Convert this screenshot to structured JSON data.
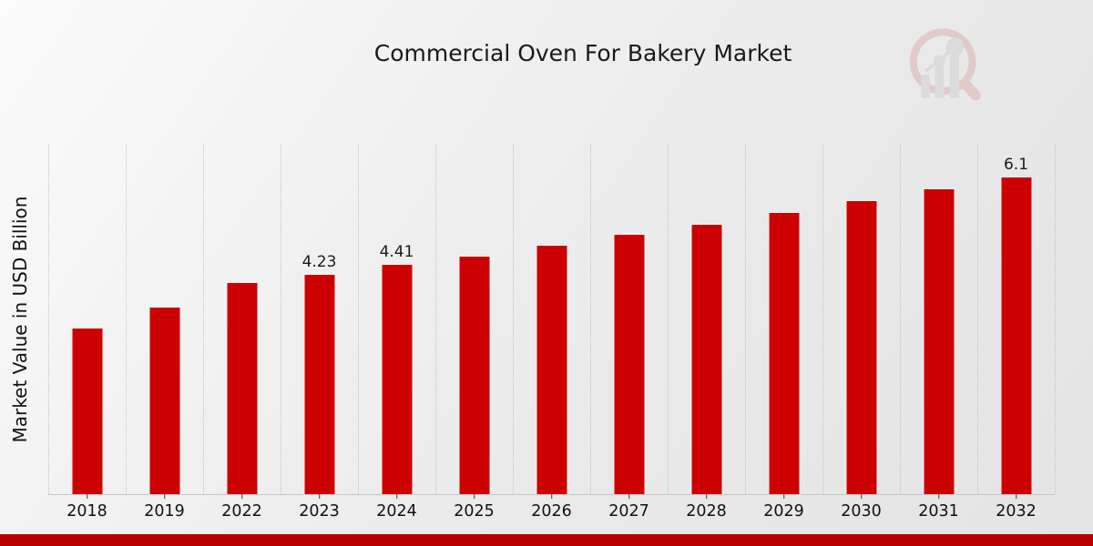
{
  "title": "Commercial Oven For Bakery Market",
  "ylabel": "Market Value in USD Billion",
  "colors": {
    "bar": "#cc0000",
    "bar_edge": "#f4f4f4",
    "bottom_band": "#b80000",
    "axis": "#c6c6c6",
    "grid": "#c3c3c3",
    "text": "#1a1a1a",
    "watermark_ring": "#dca6a6",
    "watermark_bars": "#cccccc"
  },
  "watermark": "mrfr-magnifier-bar-chart-logo",
  "chart_data": {
    "type": "bar",
    "title": "Commercial Oven For Bakery Market",
    "xlabel": "",
    "ylabel": "Market Value in USD Billion",
    "categories": [
      "2018",
      "2019",
      "2022",
      "2023",
      "2024",
      "2025",
      "2026",
      "2027",
      "2028",
      "2029",
      "2030",
      "2031",
      "2032"
    ],
    "values": [
      3.2,
      3.59,
      4.06,
      4.23,
      4.41,
      4.57,
      4.78,
      4.99,
      5.19,
      5.41,
      5.63,
      5.87,
      6.1
    ],
    "bar_labels": {
      "2023": "4.23",
      "2024": "4.41",
      "2032": "6.1"
    },
    "ylim": [
      0,
      6.72
    ],
    "y_axis_ticks_visible": false,
    "grid": "vertical dotted separators between year columns",
    "legend_position": "none",
    "bar_color": "#cc0000"
  }
}
